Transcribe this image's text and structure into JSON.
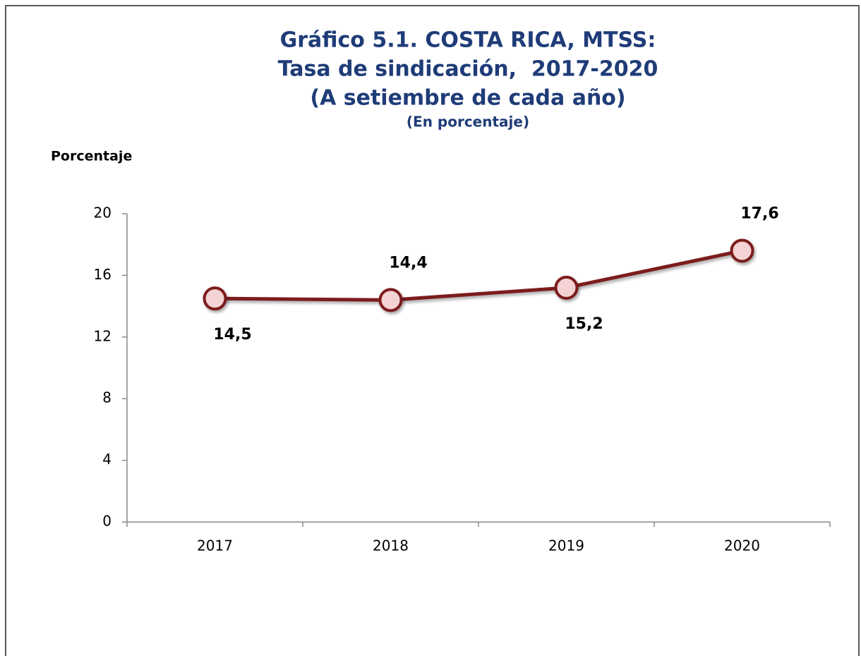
{
  "chart_data": {
    "type": "line",
    "title": [
      "Gráfico 5.1. COSTA RICA, MTSS:",
      "Tasa de sindicación,  2017-2020",
      "(A setiembre de cada año)"
    ],
    "subtitle": "(En porcentaje)",
    "y_label": "Porcentaje",
    "categories": [
      "2017",
      "2018",
      "2019",
      "2020"
    ],
    "series": [
      {
        "name": "Tasa de sindicación",
        "color": "#7b1c1c",
        "values": [
          14.5,
          14.4,
          15.2,
          17.6
        ],
        "value_labels": [
          "14,5",
          "14,4",
          "15,2",
          "17,6"
        ]
      }
    ],
    "ylim": [
      0,
      20
    ],
    "yticks": [
      0,
      4,
      8,
      12,
      16,
      20
    ],
    "grid": false
  }
}
